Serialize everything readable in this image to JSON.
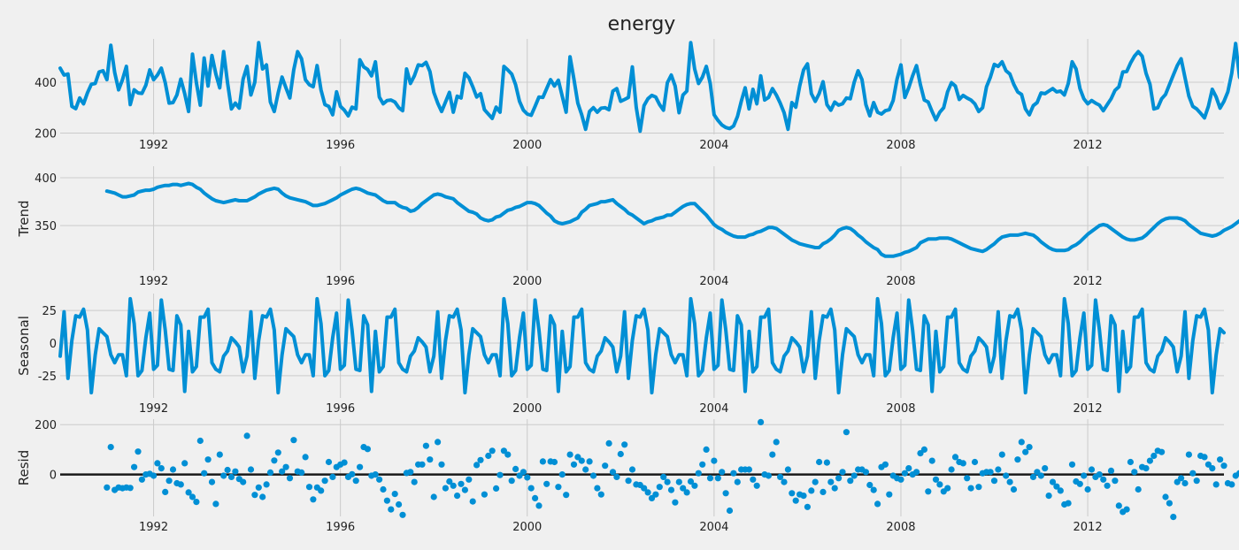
{
  "title": "energy",
  "colors": {
    "background": "#f0f0f0",
    "series": "#008fd5",
    "grid": "#cbcbcb",
    "zero_line": "#1a1a1a"
  },
  "chart_data": [
    {
      "type": "line",
      "name": "observed",
      "title": "energy",
      "ylabel": "",
      "x_ticks": [
        "1992",
        "1996",
        "2000",
        "2004",
        "2008",
        "2012"
      ],
      "y_ticks": [
        200,
        400
      ],
      "ylim": [
        195,
        570
      ],
      "x_range": [
        "1990-01",
        "2014-12"
      ],
      "grid": true,
      "values": [
        455,
        428,
        432,
        305,
        296,
        338,
        315,
        358,
        392,
        395,
        440,
        445,
        410,
        545,
        438,
        370,
        410,
        462,
        312,
        370,
        358,
        356,
        388,
        448,
        410,
        428,
        455,
        398,
        318,
        320,
        350,
        412,
        355,
        285,
        510,
        398,
        310,
        495,
        385,
        505,
        432,
        378,
        520,
        398,
        295,
        318,
        298,
        412,
        462,
        350,
        400,
        555,
        452,
        468,
        322,
        285,
        358,
        420,
        378,
        338,
        448,
        520,
        492,
        410,
        390,
        382,
        465,
        370,
        312,
        305,
        272,
        362,
        305,
        290,
        268,
        302,
        295,
        488,
        460,
        450,
        425,
        480,
        342,
        315,
        328,
        330,
        322,
        300,
        288,
        452,
        395,
        425,
        468,
        465,
        478,
        442,
        360,
        318,
        285,
        322,
        360,
        282,
        345,
        338,
        435,
        418,
        382,
        342,
        355,
        292,
        275,
        258,
        302,
        282,
        462,
        448,
        432,
        390,
        325,
        290,
        275,
        270,
        305,
        342,
        340,
        375,
        410,
        385,
        408,
        345,
        282,
        500,
        412,
        318,
        272,
        215,
        285,
        300,
        282,
        298,
        300,
        292,
        365,
        375,
        325,
        332,
        340,
        460,
        302,
        208,
        308,
        335,
        348,
        342,
        312,
        290,
        398,
        428,
        385,
        280,
        350,
        365,
        555,
        452,
        395,
        420,
        462,
        395,
        272,
        250,
        232,
        222,
        218,
        228,
        265,
        325,
        378,
        295,
        372,
        315,
        425,
        330,
        340,
        375,
        350,
        318,
        280,
        215,
        320,
        302,
        385,
        448,
        472,
        355,
        325,
        355,
        402,
        312,
        290,
        322,
        310,
        315,
        338,
        335,
        400,
        445,
        410,
        312,
        268,
        320,
        282,
        275,
        288,
        292,
        328,
        412,
        468,
        340,
        378,
        425,
        465,
        390,
        330,
        322,
        285,
        252,
        282,
        300,
        362,
        398,
        385,
        332,
        348,
        338,
        330,
        315,
        285,
        300,
        382,
        420,
        470,
        462,
        480,
        445,
        432,
        392,
        362,
        352,
        295,
        272,
        308,
        320,
        358,
        355,
        365,
        375,
        362,
        365,
        350,
        395,
        480,
        452,
        375,
        335,
        315,
        328,
        318,
        310,
        288,
        312,
        335,
        368,
        382,
        440,
        442,
        475,
        502,
        520,
        502,
        435,
        392,
        295,
        300,
        335,
        352,
        390,
        428,
        465,
        492,
        418,
        345,
        305,
        295,
        278,
        260,
        305,
        372,
        342,
        298,
        325,
        362,
        435,
        552,
        420,
        395,
        385,
        395,
        355,
        345,
        318,
        282,
        348,
        330,
        360,
        392,
        418,
        380,
        340,
        362,
        320,
        335,
        328,
        388,
        458,
        415,
        375,
        318,
        270,
        265,
        238,
        252,
        322,
        342,
        325,
        260,
        338,
        338,
        325,
        302,
        322,
        325,
        418,
        372,
        275,
        310,
        315,
        288,
        262,
        278,
        268,
        285,
        292,
        278,
        272,
        262,
        270,
        268,
        465,
        450,
        438,
        420,
        408,
        390,
        362,
        202,
        220,
        205,
        235,
        265,
        305,
        345,
        365,
        470,
        380,
        312,
        290,
        375,
        422,
        480,
        295,
        320,
        305,
        350,
        302,
        262,
        255,
        275,
        298,
        308,
        355,
        545,
        520,
        310,
        330,
        295,
        288,
        268,
        242,
        310,
        375,
        388,
        382,
        395,
        442
      ]
    },
    {
      "type": "line",
      "name": "trend",
      "title": "",
      "ylabel": "Trend",
      "x_ticks": [
        "1992",
        "1996",
        "2000",
        "2004",
        "2008",
        "2012"
      ],
      "y_ticks": [
        350,
        400
      ],
      "ylim": [
        303,
        412
      ],
      "x_range": [
        "1990-01",
        "2014-12"
      ],
      "grid": true,
      "start": "1991-01",
      "values": [
        386,
        385,
        384,
        382,
        380,
        380,
        381,
        382,
        385,
        386,
        387,
        387,
        388,
        390,
        391,
        392,
        392,
        393,
        393,
        392,
        393,
        394,
        393,
        390,
        388,
        384,
        381,
        378,
        376,
        375,
        374,
        375,
        376,
        377,
        376,
        376,
        376,
        378,
        380,
        383,
        385,
        387,
        388,
        389,
        388,
        384,
        381,
        379,
        378,
        377,
        376,
        375,
        373,
        371,
        371,
        372,
        373,
        375,
        377,
        379,
        382,
        384,
        386,
        388,
        389,
        388,
        386,
        384,
        383,
        382,
        379,
        376,
        374,
        374,
        374,
        371,
        369,
        368,
        365,
        366,
        369,
        373,
        376,
        379,
        382,
        383,
        382,
        380,
        379,
        378,
        374,
        371,
        368,
        365,
        364,
        362,
        358,
        356,
        355,
        356,
        359,
        360,
        363,
        366,
        367,
        369,
        370,
        372,
        374,
        374,
        373,
        371,
        367,
        363,
        360,
        355,
        353,
        352,
        353,
        354,
        356,
        358,
        364,
        367,
        371,
        372,
        373,
        375,
        375,
        376,
        377,
        373,
        370,
        367,
        363,
        361,
        358,
        355,
        352,
        354,
        355,
        357,
        358,
        359,
        361,
        361,
        364,
        367,
        370,
        372,
        373,
        373,
        369,
        365,
        361,
        356,
        351,
        348,
        346,
        343,
        341,
        339,
        338,
        338,
        338,
        340,
        341,
        343,
        344,
        346,
        348,
        348,
        347,
        344,
        341,
        338,
        335,
        333,
        331,
        330,
        329,
        328,
        327,
        327,
        331,
        333,
        336,
        340,
        345,
        347,
        348,
        347,
        344,
        340,
        337,
        333,
        330,
        327,
        325,
        320,
        318,
        318,
        318,
        319,
        320,
        322,
        323,
        325,
        327,
        332,
        334,
        336,
        336,
        336,
        337,
        337,
        337,
        336,
        334,
        332,
        330,
        328,
        326,
        325,
        324,
        323,
        325,
        328,
        331,
        335,
        338,
        339,
        340,
        340,
        340,
        341,
        342,
        341,
        340,
        337,
        333,
        330,
        327,
        325,
        324,
        324,
        324,
        325,
        328,
        330,
        333,
        337,
        341,
        344,
        347,
        350,
        351,
        350,
        347,
        344,
        341,
        338,
        336,
        335,
        335,
        336,
        337,
        340,
        344,
        348,
        352,
        355,
        357,
        358,
        358,
        358,
        357,
        355,
        351,
        348,
        345,
        342,
        341,
        340,
        339,
        340,
        342,
        345,
        347,
        349,
        352,
        355,
        357,
        357,
        357,
        356,
        354,
        352,
        352,
        351,
        350,
        349,
        349,
        349,
        351,
        353,
        356,
        360,
        363,
        367,
        371,
        375,
        379,
        381,
        383,
        384,
        383,
        380,
        378,
        376,
        372,
        370,
        371,
        372,
        373,
        374,
        375,
        376,
        378,
        380,
        383,
        386,
        390,
        394,
        398,
        401,
        403,
        405,
        406,
        406,
        405,
        403,
        400,
        397,
        394,
        391,
        388,
        386,
        386,
        387,
        388,
        389,
        390,
        391,
        393,
        395,
        397,
        398,
        398,
        396,
        394,
        390,
        386,
        383,
        380,
        378,
        375,
        374,
        373,
        374,
        375,
        377,
        379,
        381,
        383,
        384,
        385,
        385,
        384,
        383,
        382,
        380,
        377,
        374,
        370,
        366,
        362,
        359,
        356,
        353,
        351,
        349,
        348,
        348,
        349,
        351,
        353,
        355,
        356,
        357,
        357,
        356,
        355,
        353,
        350,
        347,
        343,
        340,
        337,
        334,
        331,
        329,
        327,
        326,
        327,
        328,
        330,
        333,
        336,
        338,
        340,
        341,
        340,
        338,
        335,
        331,
        327,
        322,
        318,
        314,
        311,
        309,
        309,
        310,
        311,
        313,
        315,
        317,
        319,
        322,
        326,
        328,
        329,
        329,
        330,
        330,
        330,
        329,
        328,
        326,
        325,
        323,
        322,
        321,
        321,
        322,
        324,
        326,
        329,
        333,
        337,
        339,
        340,
        341,
        342,
        343,
        344,
        345,
        346,
        346,
        345,
        343,
        340,
        338,
        335,
        334,
        334,
        334,
        334,
        335,
        336,
        338,
        340,
        342
      ]
    },
    {
      "type": "line",
      "name": "seasonal",
      "title": "",
      "ylabel": "Seasonal",
      "x_ticks": [
        "1992",
        "1996",
        "2000",
        "2004",
        "2008",
        "2012"
      ],
      "y_ticks": [
        -25,
        0,
        25
      ],
      "ylim": [
        -42,
        38
      ],
      "x_range": [
        "1990-01",
        "2014-12"
      ],
      "grid": true,
      "pattern": [
        -10,
        24,
        -27,
        2,
        21,
        20,
        26,
        10,
        -38,
        -9,
        11,
        8,
        5,
        -9,
        -15,
        -9,
        -9,
        -25,
        34,
        15,
        -25,
        -21,
        4,
        23,
        -20,
        -17,
        33,
        10,
        -20,
        -21,
        21,
        14,
        -37,
        9,
        -22,
        -18,
        20,
        20,
        26,
        -15,
        -20,
        -22,
        -10,
        -6,
        4,
        1,
        -3,
        -22
      ]
    },
    {
      "type": "scatter",
      "name": "resid",
      "title": "",
      "ylabel": "Resid",
      "x_ticks": [
        "1992",
        "1996",
        "2000",
        "2004",
        "2008",
        "2012"
      ],
      "y_ticks": [
        0,
        200
      ],
      "ylim": [
        -168,
        222
      ],
      "x_range": [
        "1990-01",
        "2014-12"
      ],
      "grid": true,
      "start": "1991-01",
      "values": [
        -52,
        110,
        -62,
        -52,
        -55,
        -52,
        -54,
        30,
        92,
        -20,
        0,
        3,
        -5,
        45,
        25,
        -70,
        -25,
        20,
        -35,
        -40,
        45,
        -72,
        -90,
        -110,
        135,
        5,
        60,
        -30,
        -118,
        80,
        -5,
        18,
        -10,
        12,
        -18,
        -30,
        155,
        20,
        -82,
        -52,
        -90,
        -40,
        8,
        56,
        88,
        12,
        30,
        -15,
        138,
        12,
        8,
        70,
        -50,
        -100,
        -52,
        -65,
        -25,
        50,
        -10,
        30,
        40,
        48,
        -10,
        1,
        -25,
        30,
        110,
        102,
        -5,
        0,
        -20,
        -60,
        -105,
        -140,
        -78,
        -120,
        -162,
        6,
        10,
        -30,
        40,
        40,
        115,
        60,
        -90,
        130,
        40,
        -55,
        -28,
        -45,
        -85,
        -38,
        -62,
        -20,
        -108,
        38,
        58,
        -80,
        75,
        95,
        -56,
        -2,
        95,
        80,
        -25,
        22,
        -5,
        10,
        -12,
        -55,
        -95,
        -125,
        52,
        -38,
        52,
        50,
        -50,
        0,
        -82,
        80,
        40,
        70,
        55,
        20,
        52,
        -5,
        -55,
        -80,
        35,
        125,
        10,
        -10,
        82,
        120,
        -25,
        20,
        -40,
        -42,
        -55,
        -72,
        -95,
        -80,
        -50,
        -10,
        -30,
        -62,
        -112,
        -30,
        -55,
        -72,
        -28,
        -45,
        5,
        40,
        100,
        -15,
        55,
        -15,
        10,
        -75,
        -145,
        5,
        -30,
        20,
        20,
        20,
        -20,
        -45,
        210,
        0,
        -5,
        80,
        130,
        -10,
        -30,
        20,
        -75,
        -105,
        -80,
        -85,
        -130,
        -65,
        -30,
        50,
        -70,
        48,
        -30,
        -55,
        -15,
        10,
        170,
        -25,
        -5,
        20,
        20,
        10,
        -42,
        -62,
        -118,
        30,
        40,
        -80,
        -5,
        -15,
        -20,
        5,
        25,
        0,
        10,
        85,
        100,
        -68,
        55,
        -20,
        -40,
        -68,
        -55,
        20,
        70,
        50,
        45,
        -15,
        -55,
        50,
        -50,
        5,
        10,
        10,
        -25,
        20,
        80,
        -5,
        -30,
        -60,
        60,
        130,
        90,
        110,
        -10,
        10,
        -5,
        25,
        -85,
        -30,
        -48,
        -65,
        -120,
        -115,
        40,
        -28,
        -38,
        -5,
        -60,
        20,
        -10,
        0,
        -20,
        -45,
        15,
        -25,
        -125,
        -150,
        -140,
        50,
        10,
        -60,
        30,
        25,
        55,
        75,
        95,
        90,
        -90,
        -115,
        -170,
        -30,
        -15,
        -35,
        80,
        5,
        -25,
        75,
        70,
        40,
        25,
        -40,
        60,
        35,
        -35,
        -40,
        -5,
        5,
        70,
        140,
        30,
        -5,
        -15,
        -10,
        -10,
        -30,
        -40,
        45,
        125,
        65,
        55,
        0,
        10,
        15,
        50,
        -35,
        -5,
        45,
        60,
        85,
        15,
        -40,
        -75,
        -55,
        -70,
        8,
        -5,
        -5,
        -10,
        -45,
        -55,
        100,
        50,
        100,
        50,
        10,
        -38,
        -48,
        32,
        -58,
        40,
        50,
        -30,
        55,
        -20,
        65,
        -22,
        0,
        135,
        -5,
        45,
        -15,
        50,
        -55,
        25,
        -60,
        -30,
        -15,
        5,
        30,
        22,
        -35,
        -90,
        -70,
        -45,
        40,
        -12,
        0,
        10,
        0,
        120,
        45,
        85,
        65,
        40,
        80,
        -15,
        -45,
        50,
        -22,
        -30,
        -55,
        -18,
        -90,
        -102,
        -32,
        25,
        -18,
        -28,
        10,
        -52,
        -22,
        -25,
        40,
        -22,
        12,
        14,
        -45,
        -20,
        42,
        115,
        60,
        -28,
        -48,
        -38,
        -42,
        -5,
        -55,
        -40,
        -40,
        -40,
        -40,
        -40,
        -40,
        130,
        70,
        60,
        80,
        40,
        55,
        5,
        -85,
        -110,
        -100,
        -100,
        -110,
        -60,
        80,
        70,
        30,
        -5,
        -10,
        85,
        130,
        -5,
        -15,
        -5,
        10,
        15,
        -90,
        -80,
        -95,
        -50
      ]
    }
  ]
}
